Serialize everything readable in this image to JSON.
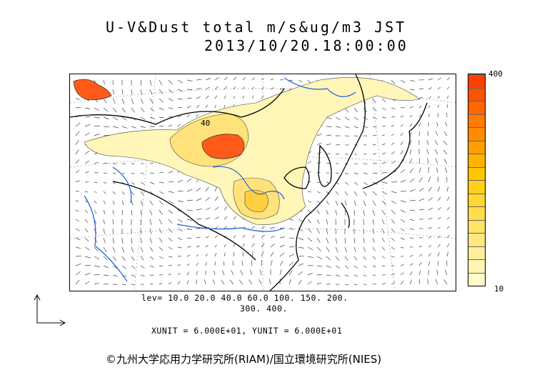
{
  "title": {
    "line1": "U-V&Dust total m/s&ug/m3 JST",
    "line2": "2013/10/20.18:00:00"
  },
  "colorbar": {
    "max_label": "400",
    "min_label": "10",
    "colors": [
      "#fffccc",
      "#fff6b3",
      "#ffef99",
      "#ffe880",
      "#ffe366",
      "#ffde4d",
      "#ffd633",
      "#ffcf1a",
      "#ffc600",
      "#ffb300",
      "#ff9f00",
      "#ff8c00",
      "#ff7a00",
      "#ff6600",
      "#ff5200",
      "#ff4000"
    ]
  },
  "levels": {
    "line1": "lev= 10.0 20.0 40.0 60.0 100. 150. 200.",
    "line2": "300. 400."
  },
  "units": "XUNIT = 6.000E+01, YUNIT = 6.000E+01",
  "credit": "©九州大学応用力学研究所(RIAM)/国立環境研究所(NIES)",
  "contour_label": "40",
  "colors": {
    "coast": "#000000",
    "river": "#1f5fd6",
    "dust_light": "#fff6b8",
    "dust_mid": "#ffe37a",
    "dust_heavy": "#ff5a1a",
    "vector": "#444444"
  }
}
